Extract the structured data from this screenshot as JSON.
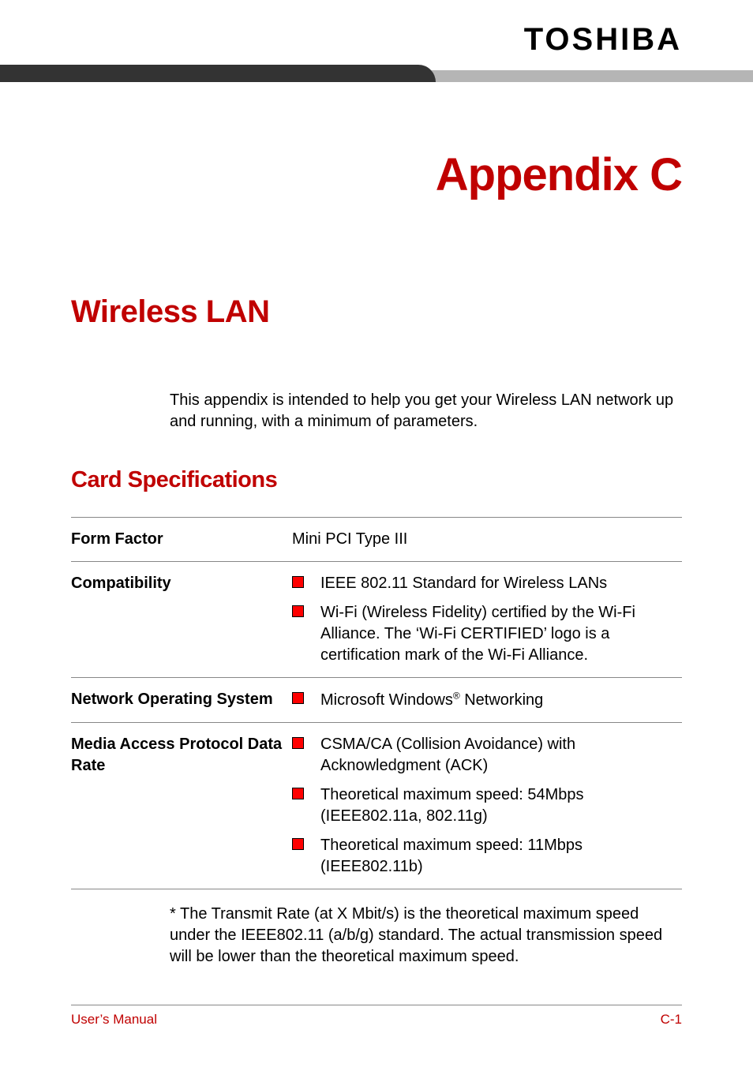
{
  "brand": "TOSHIBA",
  "colors": {
    "accent": "#c00000",
    "bullet_fill": "#ff0000",
    "bullet_border": "#000000",
    "bar_dark": "#333333",
    "bar_light": "#b5b5b5",
    "rule": "#888888",
    "text": "#000000",
    "background": "#ffffff"
  },
  "typography": {
    "brand_fontsize": 40,
    "appendix_fontsize": 58,
    "section_fontsize": 40,
    "subsection_fontsize": 29,
    "body_fontsize": 20,
    "footer_fontsize": 17
  },
  "appendix_title": "Appendix C",
  "section_title": "Wireless LAN",
  "intro_text": "This appendix is intended to help you get your Wireless LAN network up and running, with a minimum of parameters.",
  "subsection_title": "Card Specifications",
  "spec_table": {
    "rows": [
      {
        "label": "Form Factor",
        "type": "text",
        "value": "Mini PCI Type III"
      },
      {
        "label": "Compatibility",
        "type": "bullets",
        "items": [
          "IEEE 802.11 Standard for Wireless LANs",
          "Wi-Fi (Wireless Fidelity) certified by the Wi-Fi Alliance. The ‘Wi-Fi CERTIFIED’ logo is a certification mark of the Wi-Fi Alliance."
        ]
      },
      {
        "label": "Network Operating System",
        "type": "bullets",
        "items_html": [
          "Microsoft Windows<span class=\"sup\">®</span> Networking"
        ]
      },
      {
        "label": "Media Access Protocol Data Rate",
        "type": "bullets",
        "items": [
          "CSMA/CA (Collision Avoidance) with Acknowledgment (ACK)",
          "Theoretical maximum speed: 54Mbps (IEEE802.11a, 802.11g)",
          "Theoretical maximum speed: 11Mbps (IEEE802.11b)"
        ]
      }
    ]
  },
  "footnote": "* The Transmit Rate (at X Mbit/s) is the theoretical maximum speed under the IEEE802.11 (a/b/g) standard. The actual transmission speed will be lower than the theoretical maximum speed.",
  "footer": {
    "left": "User’s Manual",
    "right": "C-1"
  }
}
